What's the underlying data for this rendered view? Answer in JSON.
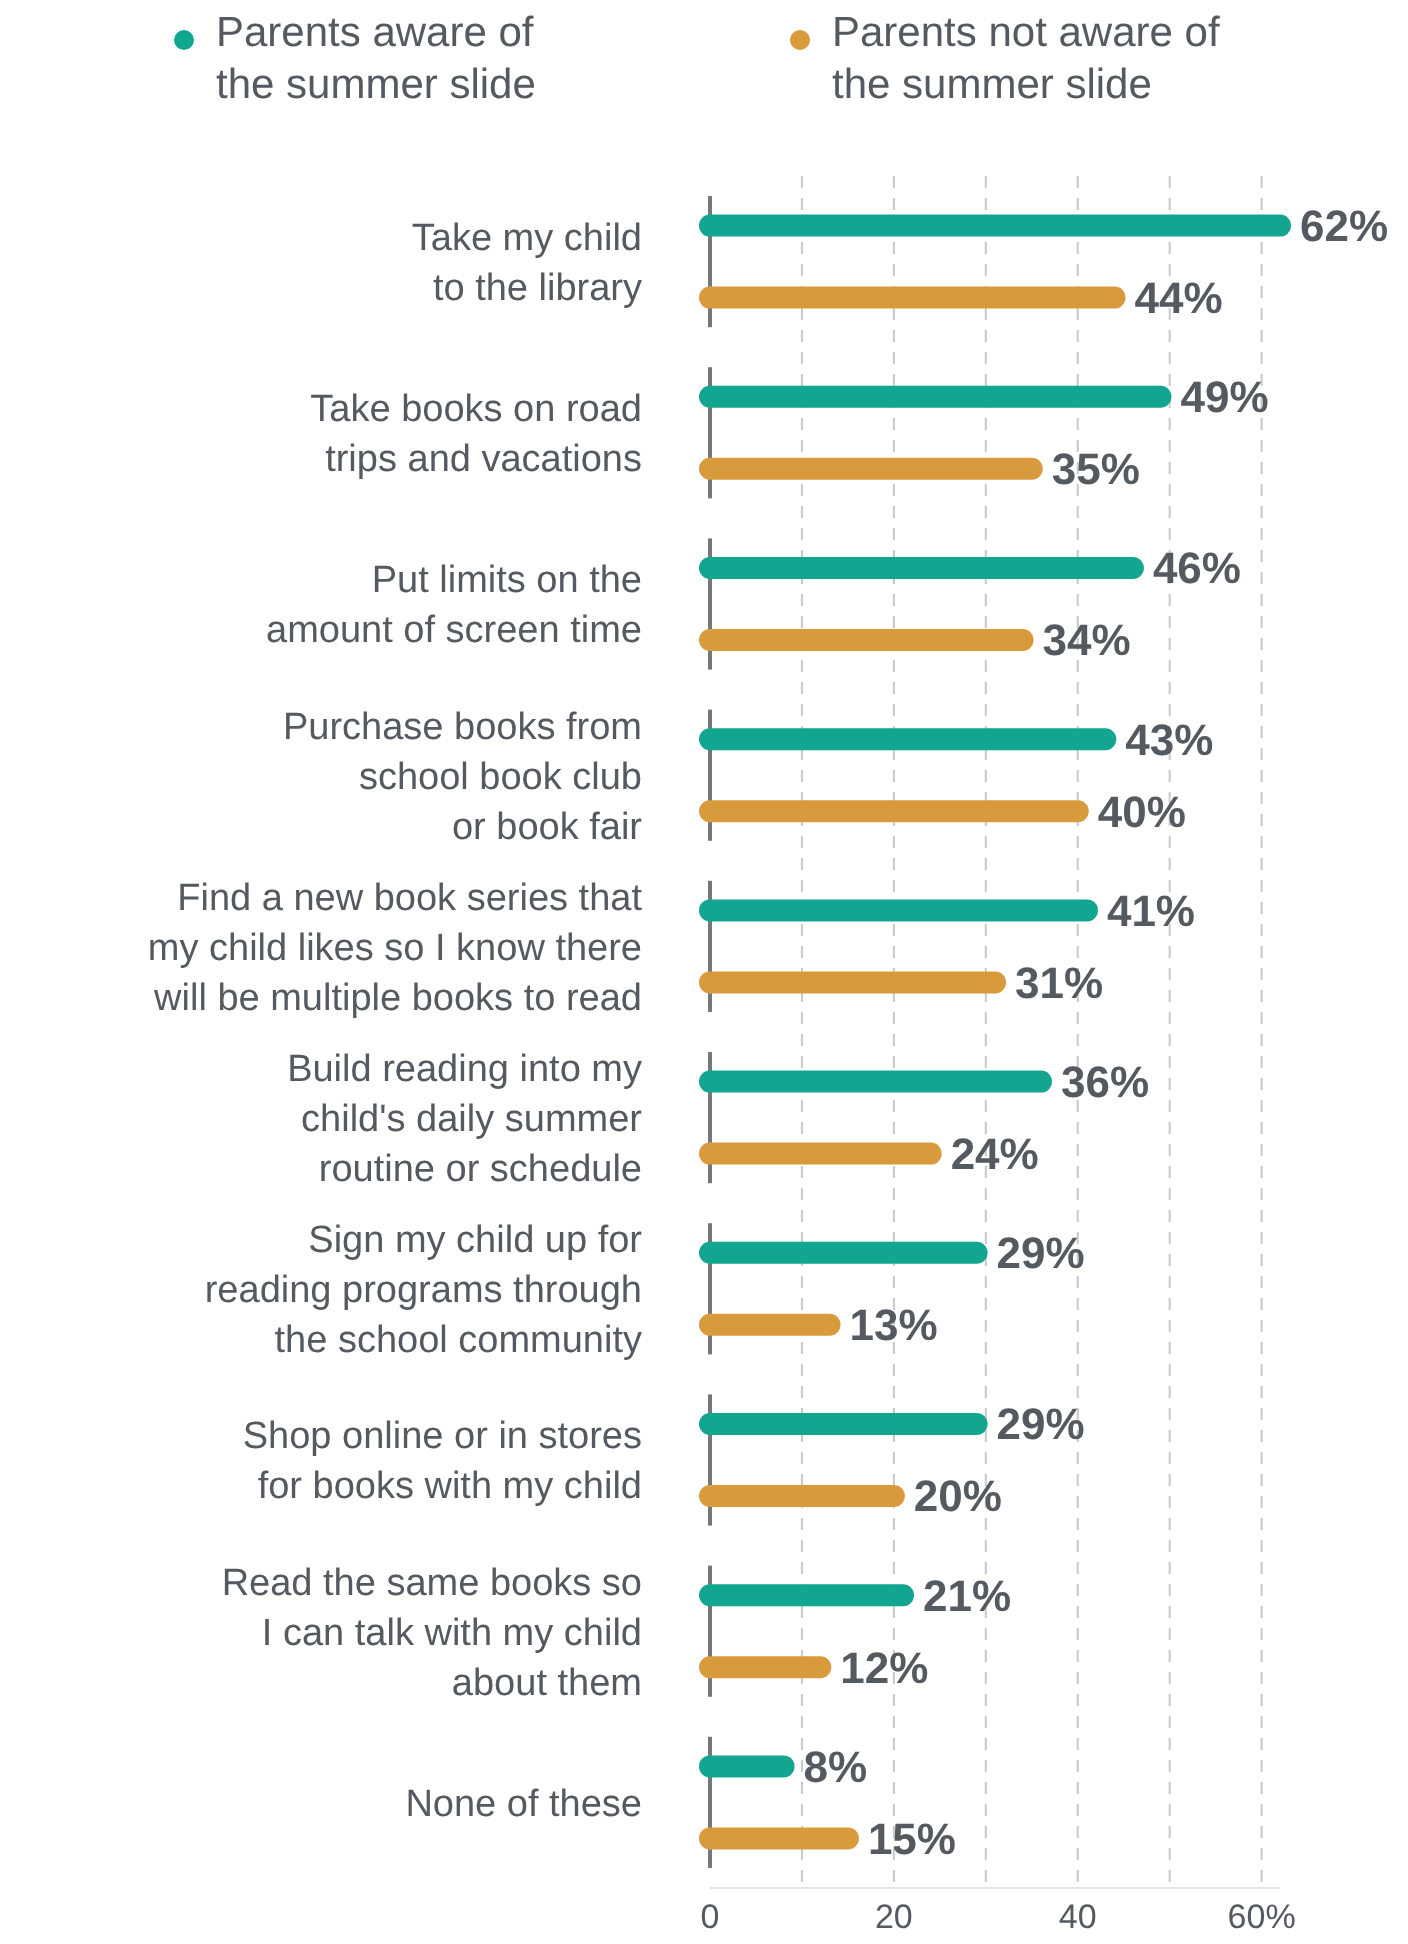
{
  "chart_data": {
    "type": "bar",
    "orientation": "horizontal",
    "categories": [
      "Take my child\nto the library",
      "Take books on road\ntrips and vacations",
      "Put limits on the\namount of screen time",
      "Purchase books from\nschool book club\nor book fair",
      "Find a new book series that\nmy child likes so I know there\nwill be multiple books to read",
      "Build reading into my\nchild's daily summer\nroutine or schedule",
      "Sign my child up for\nreading programs through\nthe school community",
      "Shop online or in stores\nfor books with my child",
      "Read the same books so\nI can talk with my child\nabout them",
      "None of these"
    ],
    "series": [
      {
        "name": "Parents aware of\nthe summer slide",
        "color": "#12a58f",
        "values": [
          62,
          49,
          46,
          43,
          41,
          36,
          29,
          29,
          21,
          8
        ],
        "value_labels": [
          "62%",
          "49%",
          "46%",
          "43%",
          "41%",
          "36%",
          "29%",
          "29%",
          "21%",
          "8%"
        ]
      },
      {
        "name": "Parents not aware of\nthe summer slide",
        "color": "#d99a3c",
        "values": [
          44,
          35,
          34,
          40,
          31,
          24,
          13,
          20,
          12,
          15
        ],
        "value_labels": [
          "44%",
          "35%",
          "34%",
          "40%",
          "31%",
          "24%",
          "13%",
          "20%",
          "12%",
          "15%"
        ]
      }
    ],
    "xlim": [
      0,
      62
    ],
    "xticks": [
      0,
      {
        "value": 10,
        "label": null
      },
      20,
      {
        "value": 30,
        "label": null
      },
      40,
      {
        "value": 50,
        "label": null
      },
      {
        "value": 60,
        "label": "60%"
      }
    ],
    "grid": "x",
    "legend": "top"
  }
}
